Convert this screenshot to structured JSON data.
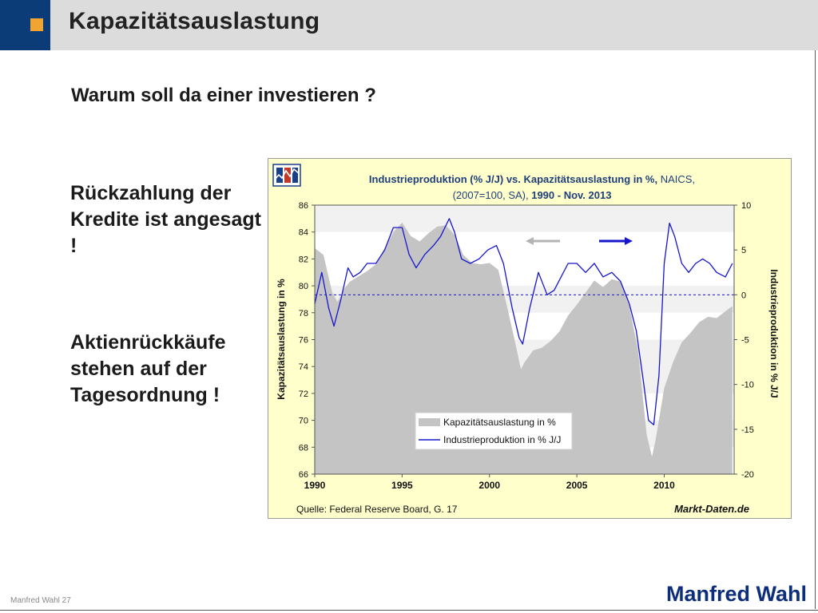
{
  "header": {
    "title": "Kapazitätsauslastung"
  },
  "subtitle": "Warum soll da einer investieren ?",
  "bullets": [
    "Rückzahlung der Kredite ist angesagt !",
    "Aktienrückkäufe stehen auf der Tagesordnung !"
  ],
  "footer": {
    "page": "Manfred Wahl 27",
    "brand": "Manfred Wahl"
  },
  "colors": {
    "header_blue": "#0b3c78",
    "accent_orange": "#f0a532",
    "brand_blue": "#0d2e7a",
    "chart_bg": "#ffffcc",
    "series_gray": "#c4c4c4",
    "series_blue": "#1616cc"
  },
  "chart_data": {
    "type": "area",
    "title_line1_bold": "Industrieproduktion (% J/J) vs. Kapazitätsauslastung in %,",
    "title_line1_rest": " NAICS,",
    "title_line2_rest": "(2007=100, SA), ",
    "title_line2_bold": "1990 - Nov. 2013",
    "ylabel_left": "Kapazitätsauslastung in %",
    "ylabel_right": "Industrieproduktion in % J/J",
    "x_ticks": [
      "1990",
      "1995",
      "2000",
      "2005",
      "2010"
    ],
    "y_left_ticks": [
      "86",
      "84",
      "82",
      "80",
      "78",
      "76",
      "74",
      "72",
      "70",
      "68",
      "66"
    ],
    "y_right_ticks": [
      "10",
      "5",
      "0",
      "-5",
      "-10",
      "-15",
      "-20"
    ],
    "xlim": [
      1990,
      2014
    ],
    "ylim_left": [
      66,
      86
    ],
    "ylim_right": [
      -20,
      10
    ],
    "source": "Quelle: Federal Reserve Board, G. 17",
    "brand": "Markt-Daten.de",
    "legend_position": "bottom-left",
    "series": [
      {
        "name": "Kapazitätsauslastung in %",
        "axis": "left",
        "x": [
          1990,
          1990.5,
          1991,
          1991.3,
          1991.7,
          1992,
          1992.5,
          1993,
          1993.5,
          1994,
          1994.5,
          1995,
          1995.5,
          1996,
          1996.5,
          1997,
          1997.5,
          1998,
          1998.5,
          1999,
          1999.5,
          2000,
          2000.5,
          2001,
          2001.5,
          2001.8,
          2002,
          2002.5,
          2003,
          2003.5,
          2004,
          2004.5,
          2005,
          2005.5,
          2006,
          2006.5,
          2007,
          2007.5,
          2008,
          2008.5,
          2009,
          2009.3,
          2009.5,
          2010,
          2010.5,
          2011,
          2011.5,
          2012,
          2012.5,
          2013,
          2013.9
        ],
        "y": [
          82.8,
          82.3,
          79.5,
          78.8,
          79.8,
          80.3,
          80.7,
          81.1,
          81.6,
          82.8,
          84,
          84.7,
          83.7,
          83.3,
          83.9,
          84.4,
          84.5,
          83.8,
          82.3,
          81.7,
          81.6,
          81.7,
          81.2,
          78.5,
          75.6,
          73.8,
          74.3,
          75.2,
          75.4,
          75.9,
          76.6,
          77.8,
          78.6,
          79.5,
          80.4,
          79.9,
          80.5,
          80.3,
          78.5,
          75.2,
          68.9,
          67.3,
          68.5,
          72.4,
          74.3,
          75.8,
          76.5,
          77.3,
          77.7,
          77.6,
          78.5
        ]
      },
      {
        "name": "Industrieproduktion in % J/J",
        "axis": "right",
        "x": [
          1990,
          1990.4,
          1990.8,
          1991.1,
          1991.5,
          1991.9,
          1992.2,
          1992.6,
          1993,
          1993.5,
          1994,
          1994.5,
          1995,
          1995.4,
          1995.8,
          1996.3,
          1996.8,
          1997.2,
          1997.7,
          1998,
          1998.4,
          1998.9,
          1999.4,
          1999.9,
          2000.4,
          2000.8,
          2001.3,
          2001.7,
          2001.9,
          2002.3,
          2002.8,
          2003.3,
          2003.7,
          2004.1,
          2004.5,
          2005,
          2005.5,
          2006,
          2006.5,
          2007,
          2007.5,
          2008,
          2008.4,
          2008.8,
          2009.1,
          2009.4,
          2009.7,
          2010,
          2010.3,
          2010.6,
          2011,
          2011.4,
          2011.8,
          2012.2,
          2012.6,
          2013,
          2013.5,
          2013.9
        ],
        "y": [
          -1,
          2.5,
          -1.5,
          -3.5,
          -0.5,
          3,
          2,
          2.5,
          3.5,
          3.5,
          5,
          7.5,
          7.5,
          4.5,
          3,
          4.5,
          5.5,
          6.5,
          8.5,
          7,
          4,
          3.5,
          4,
          5,
          5.5,
          3.5,
          -1.5,
          -4.8,
          -5.5,
          -1.5,
          2.5,
          0,
          0.5,
          2,
          3.5,
          3.5,
          2.5,
          3.5,
          2,
          2.5,
          1.5,
          -1,
          -4,
          -9.5,
          -14,
          -14.5,
          -9,
          3.5,
          8,
          6.5,
          3.5,
          2.5,
          3.5,
          4,
          3.5,
          2.5,
          2,
          3.5
        ]
      }
    ]
  }
}
